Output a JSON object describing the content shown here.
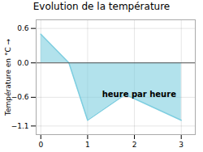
{
  "chart_data": {
    "type": "area",
    "title": "Evolution de la température",
    "ylabel": "Température en °C",
    "x": [
      0,
      0.6,
      1.0,
      1.8,
      3.0
    ],
    "values": [
      0.5,
      0.0,
      -1.0,
      -0.55,
      -1.0
    ],
    "color": "#7ecee0",
    "xlim": [
      -0.1,
      3.3
    ],
    "ylim": [
      -1.25,
      0.75
    ],
    "xticks": [
      0,
      1,
      2,
      3
    ],
    "yticks": [
      -1.1,
      -0.6,
      {
        "value": 0.0,
        "label": "0.0"
      },
      0.6
    ],
    "grid": true,
    "annotations": [
      {
        "text": "heure par heure",
        "x": 2.1,
        "y": -0.55
      }
    ]
  }
}
